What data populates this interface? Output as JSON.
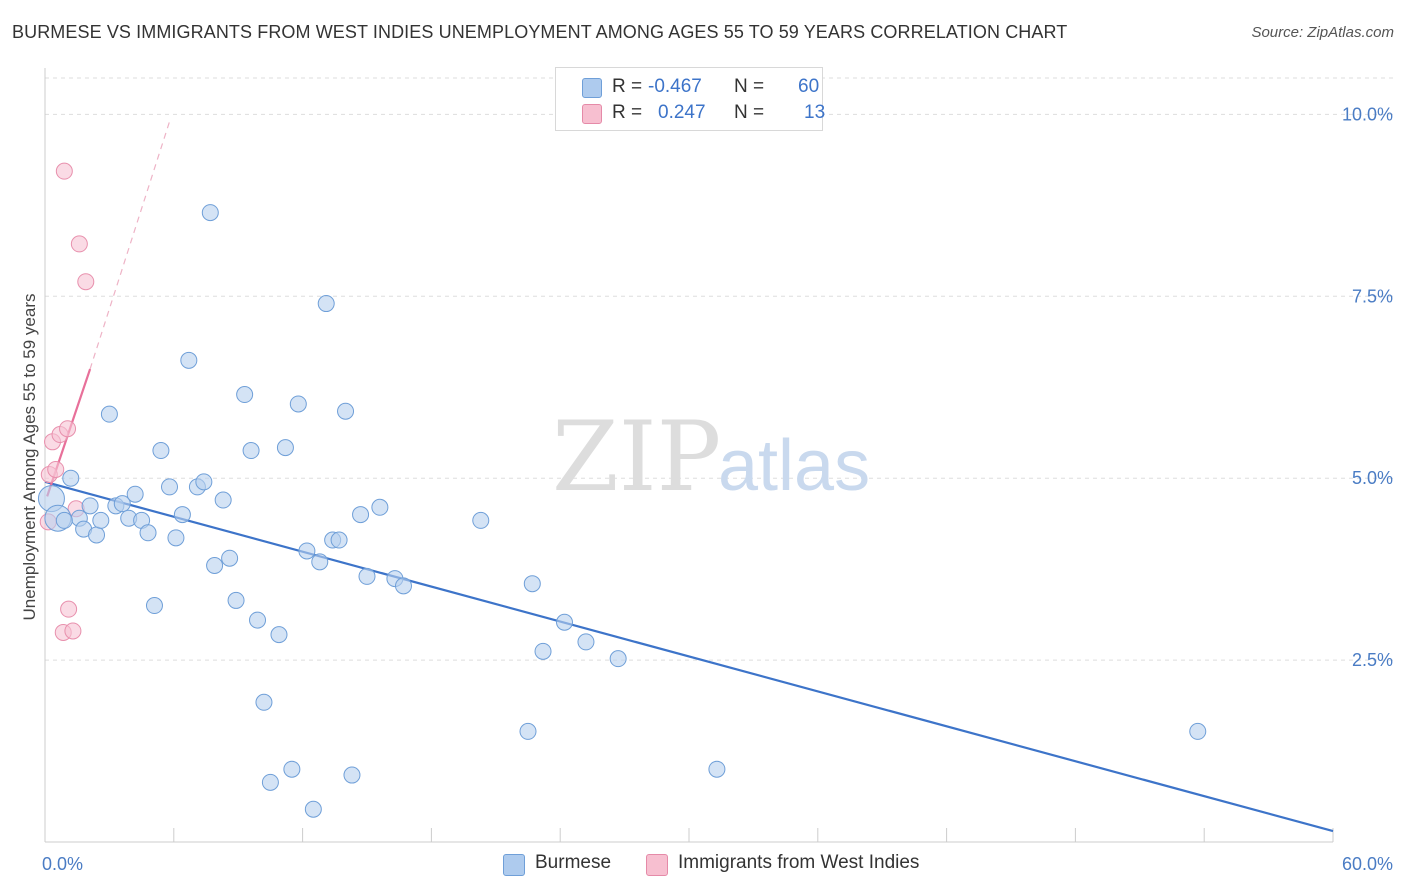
{
  "title": "BURMESE VS IMMIGRANTS FROM WEST INDIES UNEMPLOYMENT AMONG AGES 55 TO 59 YEARS CORRELATION CHART",
  "source": "Source: ZipAtlas.com",
  "watermark": {
    "zip": "ZIP",
    "atlas": "atlas"
  },
  "legend": {
    "rows": [
      {
        "r_label": "R =",
        "r_value": "-0.467",
        "n_label": "N =",
        "n_value": "60",
        "color": "#aecbee",
        "edge": "#6f9fd8"
      },
      {
        "r_label": "R =",
        "r_value": "0.247",
        "n_label": "N =",
        "n_value": "13",
        "color": "#f7bfd0",
        "edge": "#e58aa8"
      }
    ]
  },
  "bottom_legend": {
    "burmese": "Burmese",
    "west_indies": "Immigrants from West Indies"
  },
  "chart_data": {
    "type": "scatter",
    "title": "BURMESE VS IMMIGRANTS FROM WEST INDIES UNEMPLOYMENT AMONG AGES 55 TO 59 YEARS CORRELATION CHART",
    "xlabel": "",
    "ylabel": "Unemployment Among Ages 55 to 59 years",
    "xlim": [
      0,
      60
    ],
    "ylim": [
      0,
      10.5
    ],
    "x_tick_labels": [
      "0.0%",
      "60.0%"
    ],
    "y_ticks": [
      2.5,
      5.0,
      7.5,
      10.0
    ],
    "y_tick_labels": [
      "2.5%",
      "5.0%",
      "7.5%",
      "10.0%"
    ],
    "grid": true,
    "colors": {
      "burmese": "#3d74c9",
      "west_indies": "#e8709a"
    },
    "series": [
      {
        "name": "Burmese",
        "trend": {
          "x": [
            0,
            60
          ],
          "y": [
            4.95,
            0.15
          ]
        },
        "points": [
          {
            "x": 0.3,
            "y": 4.72,
            "big": true
          },
          {
            "x": 0.6,
            "y": 4.45,
            "big": true
          },
          {
            "x": 1.2,
            "y": 5.0
          },
          {
            "x": 1.6,
            "y": 4.45
          },
          {
            "x": 1.8,
            "y": 4.3
          },
          {
            "x": 2.1,
            "y": 4.62
          },
          {
            "x": 2.4,
            "y": 4.22
          },
          {
            "x": 2.6,
            "y": 4.42
          },
          {
            "x": 3.0,
            "y": 5.88
          },
          {
            "x": 3.3,
            "y": 4.62
          },
          {
            "x": 3.6,
            "y": 4.65
          },
          {
            "x": 3.9,
            "y": 4.45
          },
          {
            "x": 4.2,
            "y": 4.78
          },
          {
            "x": 4.5,
            "y": 4.42
          },
          {
            "x": 4.8,
            "y": 4.25
          },
          {
            "x": 5.1,
            "y": 3.25
          },
          {
            "x": 5.4,
            "y": 5.38
          },
          {
            "x": 5.8,
            "y": 4.88
          },
          {
            "x": 6.1,
            "y": 4.18
          },
          {
            "x": 6.4,
            "y": 4.5
          },
          {
            "x": 6.7,
            "y": 6.62
          },
          {
            "x": 7.1,
            "y": 4.88
          },
          {
            "x": 7.4,
            "y": 4.95
          },
          {
            "x": 7.7,
            "y": 8.65
          },
          {
            "x": 7.9,
            "y": 3.8
          },
          {
            "x": 8.3,
            "y": 4.7
          },
          {
            "x": 8.6,
            "y": 3.9
          },
          {
            "x": 8.9,
            "y": 3.32
          },
          {
            "x": 9.3,
            "y": 6.15
          },
          {
            "x": 9.6,
            "y": 5.38
          },
          {
            "x": 9.9,
            "y": 3.05
          },
          {
            "x": 10.2,
            "y": 1.92
          },
          {
            "x": 10.5,
            "y": 0.82
          },
          {
            "x": 10.9,
            "y": 2.85
          },
          {
            "x": 11.2,
            "y": 5.42
          },
          {
            "x": 11.5,
            "y": 1.0
          },
          {
            "x": 11.8,
            "y": 6.02
          },
          {
            "x": 12.2,
            "y": 4.0
          },
          {
            "x": 12.5,
            "y": 0.45
          },
          {
            "x": 12.8,
            "y": 3.85
          },
          {
            "x": 13.1,
            "y": 7.4
          },
          {
            "x": 13.4,
            "y": 4.15
          },
          {
            "x": 13.7,
            "y": 4.15
          },
          {
            "x": 14.0,
            "y": 5.92
          },
          {
            "x": 14.3,
            "y": 0.92
          },
          {
            "x": 14.7,
            "y": 4.5
          },
          {
            "x": 15.0,
            "y": 3.65
          },
          {
            "x": 15.6,
            "y": 4.6
          },
          {
            "x": 16.3,
            "y": 3.62
          },
          {
            "x": 16.7,
            "y": 3.52
          },
          {
            "x": 20.3,
            "y": 4.42
          },
          {
            "x": 22.5,
            "y": 1.52
          },
          {
            "x": 22.7,
            "y": 3.55
          },
          {
            "x": 23.2,
            "y": 2.62
          },
          {
            "x": 24.2,
            "y": 3.02
          },
          {
            "x": 25.2,
            "y": 2.75
          },
          {
            "x": 26.7,
            "y": 2.52
          },
          {
            "x": 31.3,
            "y": 1.0
          },
          {
            "x": 53.7,
            "y": 1.52
          },
          {
            "x": 0.9,
            "y": 4.42
          }
        ]
      },
      {
        "name": "Immigrants from West Indies",
        "trend": {
          "x": [
            0.1,
            2.1
          ],
          "y": [
            4.75,
            6.5
          ]
        },
        "trend_dashed": {
          "x": [
            2.1,
            5.8
          ],
          "y": [
            6.5,
            9.9
          ]
        },
        "points": [
          {
            "x": 0.2,
            "y": 5.05
          },
          {
            "x": 0.35,
            "y": 5.5
          },
          {
            "x": 0.5,
            "y": 5.12
          },
          {
            "x": 0.7,
            "y": 5.6
          },
          {
            "x": 0.85,
            "y": 2.88
          },
          {
            "x": 0.9,
            "y": 9.22
          },
          {
            "x": 1.05,
            "y": 5.68
          },
          {
            "x": 1.1,
            "y": 3.2
          },
          {
            "x": 1.3,
            "y": 2.9
          },
          {
            "x": 1.45,
            "y": 4.58
          },
          {
            "x": 1.6,
            "y": 8.22
          },
          {
            "x": 1.9,
            "y": 7.7
          },
          {
            "x": 0.15,
            "y": 4.4
          }
        ]
      }
    ]
  }
}
